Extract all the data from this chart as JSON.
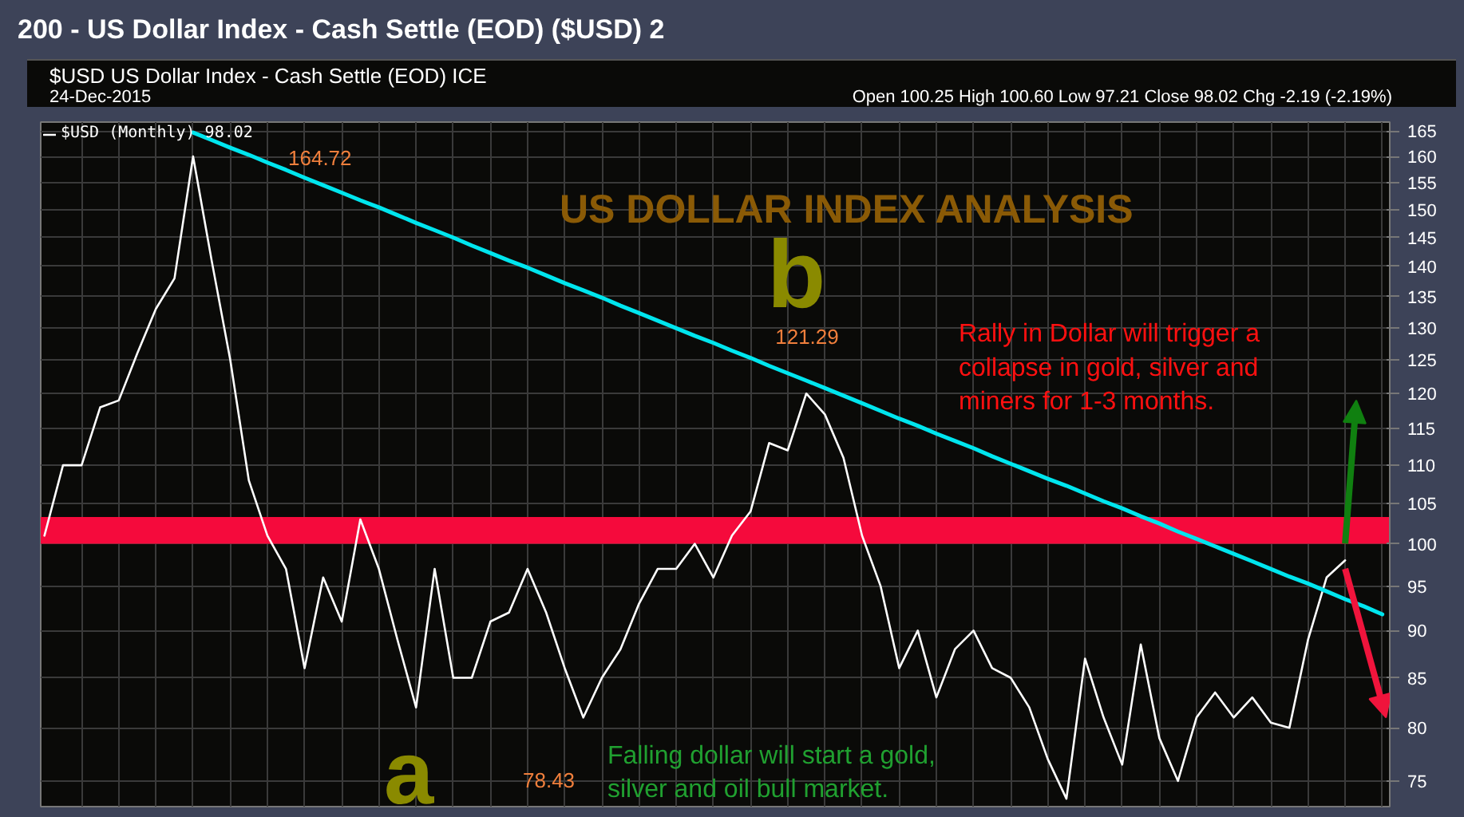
{
  "chart_data": {
    "type": "line",
    "title": "200 - US Dollar Index - Cash Settle (EOD) ($USD) 2",
    "subtitle": "$USD US Dollar Index - Cash Settle (EOD) ICE",
    "categories": [
      null,
      null,
      null,
      null,
      null,
      null,
      null,
      null,
      null,
      null,
      null,
      null,
      null,
      null,
      null,
      null,
      null,
      null,
      null,
      null,
      null,
      null,
      null,
      null,
      null,
      null,
      null,
      null,
      null,
      null,
      null,
      null,
      null,
      null,
      null,
      null,
      null,
      null,
      null,
      null,
      null,
      null,
      null,
      null,
      null,
      null,
      null,
      null,
      null,
      null,
      null,
      null,
      null,
      null,
      null,
      null,
      null,
      null,
      null,
      null,
      null,
      null,
      null,
      null,
      null,
      null,
      null,
      null,
      null,
      null,
      null,
      null,
      null
    ],
    "series": [
      {
        "name": "$USD (Monthly) 98.02",
        "color": "#ffffff",
        "values": [
          101,
          110,
          110,
          118,
          119,
          126,
          133,
          138,
          160,
          141,
          125,
          108,
          101,
          97,
          86,
          96,
          91,
          103,
          97,
          89,
          82,
          97,
          85,
          85,
          91,
          92,
          97,
          92,
          86,
          81,
          85,
          88,
          93,
          97,
          97,
          100,
          96,
          101,
          104,
          113,
          112,
          120,
          117,
          111,
          101,
          95,
          86,
          90,
          83,
          88,
          90,
          86,
          85,
          82,
          77,
          73.4,
          87,
          81,
          76.5,
          88.5,
          79,
          75,
          81,
          83.5,
          81,
          83,
          80.5,
          80,
          89,
          96,
          98.02,
          null,
          null
        ]
      },
      {
        "color": "#00e5ee",
        "values": [
          null,
          null,
          null,
          null,
          null,
          null,
          null,
          null,
          164.7,
          163.2,
          161.7,
          160.3,
          158.8,
          157.4,
          155.9,
          154.5,
          153.1,
          151.7,
          150.4,
          149.0,
          147.6,
          146.3,
          145.0,
          143.6,
          142.3,
          141.0,
          139.8,
          138.5,
          137.2,
          136.0,
          134.8,
          133.5,
          132.3,
          131.1,
          129.9,
          128.7,
          127.6,
          126.4,
          125.3,
          124.1,
          123.0,
          121.9,
          120.8,
          119.7,
          118.6,
          117.5,
          116.4,
          115.4,
          114.3,
          113.3,
          112.3,
          111.2,
          110.2,
          109.2,
          108.2,
          107.3,
          106.3,
          105.3,
          104.4,
          103.4,
          102.5,
          101.5,
          100.6,
          99.7,
          98.8,
          97.9,
          97.0,
          96.1,
          95.3,
          94.4,
          93.5,
          92.7,
          91.8
        ]
      }
    ],
    "annotations": [
      "164.72",
      "121.29",
      "78.43",
      "24-Dec-2015",
      "Open 100.25 High 100.60 Low 97.21 Close 98.02 Chg -2.19 (-2.19%)",
      "US DOLLAR INDEX ANALYSIS",
      "Rally in Dollar will trigger a\ncollapse in gold, silver and\nminers for 1-3 months.",
      "Falling dollar will start a gold,\nsilver and oil bull market.",
      "a",
      "b"
    ],
    "bands": [
      {
        "axis": "y",
        "from": 100,
        "to": 103.3,
        "color": "#f50a3c"
      }
    ],
    "ylim": [
      72.7,
      166.8
    ],
    "yticks": [
      75,
      80,
      85,
      90,
      95,
      100,
      105,
      110,
      115,
      120,
      125,
      130,
      135,
      140,
      145,
      150,
      155,
      160,
      165
    ],
    "log": "y",
    "tick_labels": "y",
    "grid": true,
    "legend": "top left",
    "marker": "none",
    "line_style": "solid"
  }
}
